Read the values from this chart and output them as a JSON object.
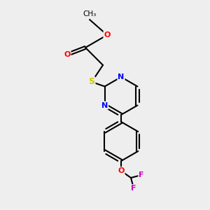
{
  "background_color": "#eeeeee",
  "bond_color": "#000000",
  "atom_colors": {
    "O": "#ff0000",
    "N": "#0000ff",
    "S": "#cccc00",
    "F": "#cc00cc",
    "C": "#000000"
  },
  "figsize": [
    3.0,
    3.0
  ],
  "dpi": 100
}
